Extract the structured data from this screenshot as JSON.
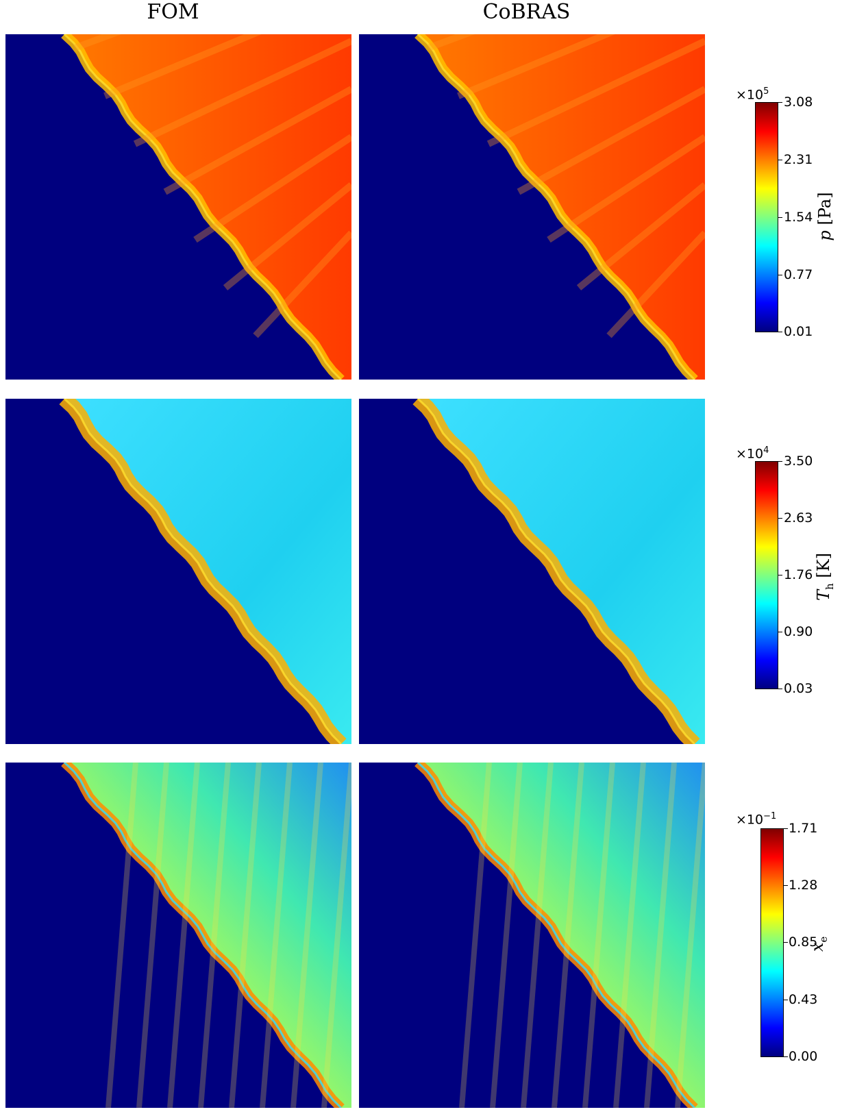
{
  "columns": [
    "FOM",
    "CoBRAS"
  ],
  "colors": {
    "jet": [
      "#000080",
      "#0000ff",
      "#0080ff",
      "#00ffff",
      "#80ff80",
      "#ffff00",
      "#ff8000",
      "#ff0000",
      "#800000"
    ],
    "background_low": "#00007f"
  },
  "chart_data": [
    {
      "type": "heatmap",
      "title": "",
      "quantity": "p",
      "unit": "[Pa]",
      "exponent": "×10",
      "exponent_power": "5",
      "ticks": [
        "3.08",
        "2.31",
        "1.54",
        "0.77",
        "0.01"
      ],
      "range": [
        0.01,
        3.08
      ],
      "fields": [
        "FOM",
        "CoBRAS"
      ]
    },
    {
      "type": "heatmap",
      "title": "",
      "quantity": "T",
      "subscript": "h",
      "unit": "[K]",
      "exponent": "×10",
      "exponent_power": "4",
      "ticks": [
        "3.50",
        "2.63",
        "1.76",
        "0.90",
        "0.03"
      ],
      "range": [
        0.03,
        3.5
      ],
      "fields": [
        "FOM",
        "CoBRAS"
      ]
    },
    {
      "type": "heatmap",
      "title": "",
      "quantity": "x",
      "subscript": "e",
      "unit": "",
      "exponent": "×10",
      "exponent_power": "−1",
      "ticks": [
        "1.71",
        "1.28",
        "0.85",
        "0.43",
        "0.00"
      ],
      "range": [
        0.0,
        1.71
      ],
      "fields": [
        "FOM",
        "CoBRAS"
      ]
    }
  ]
}
